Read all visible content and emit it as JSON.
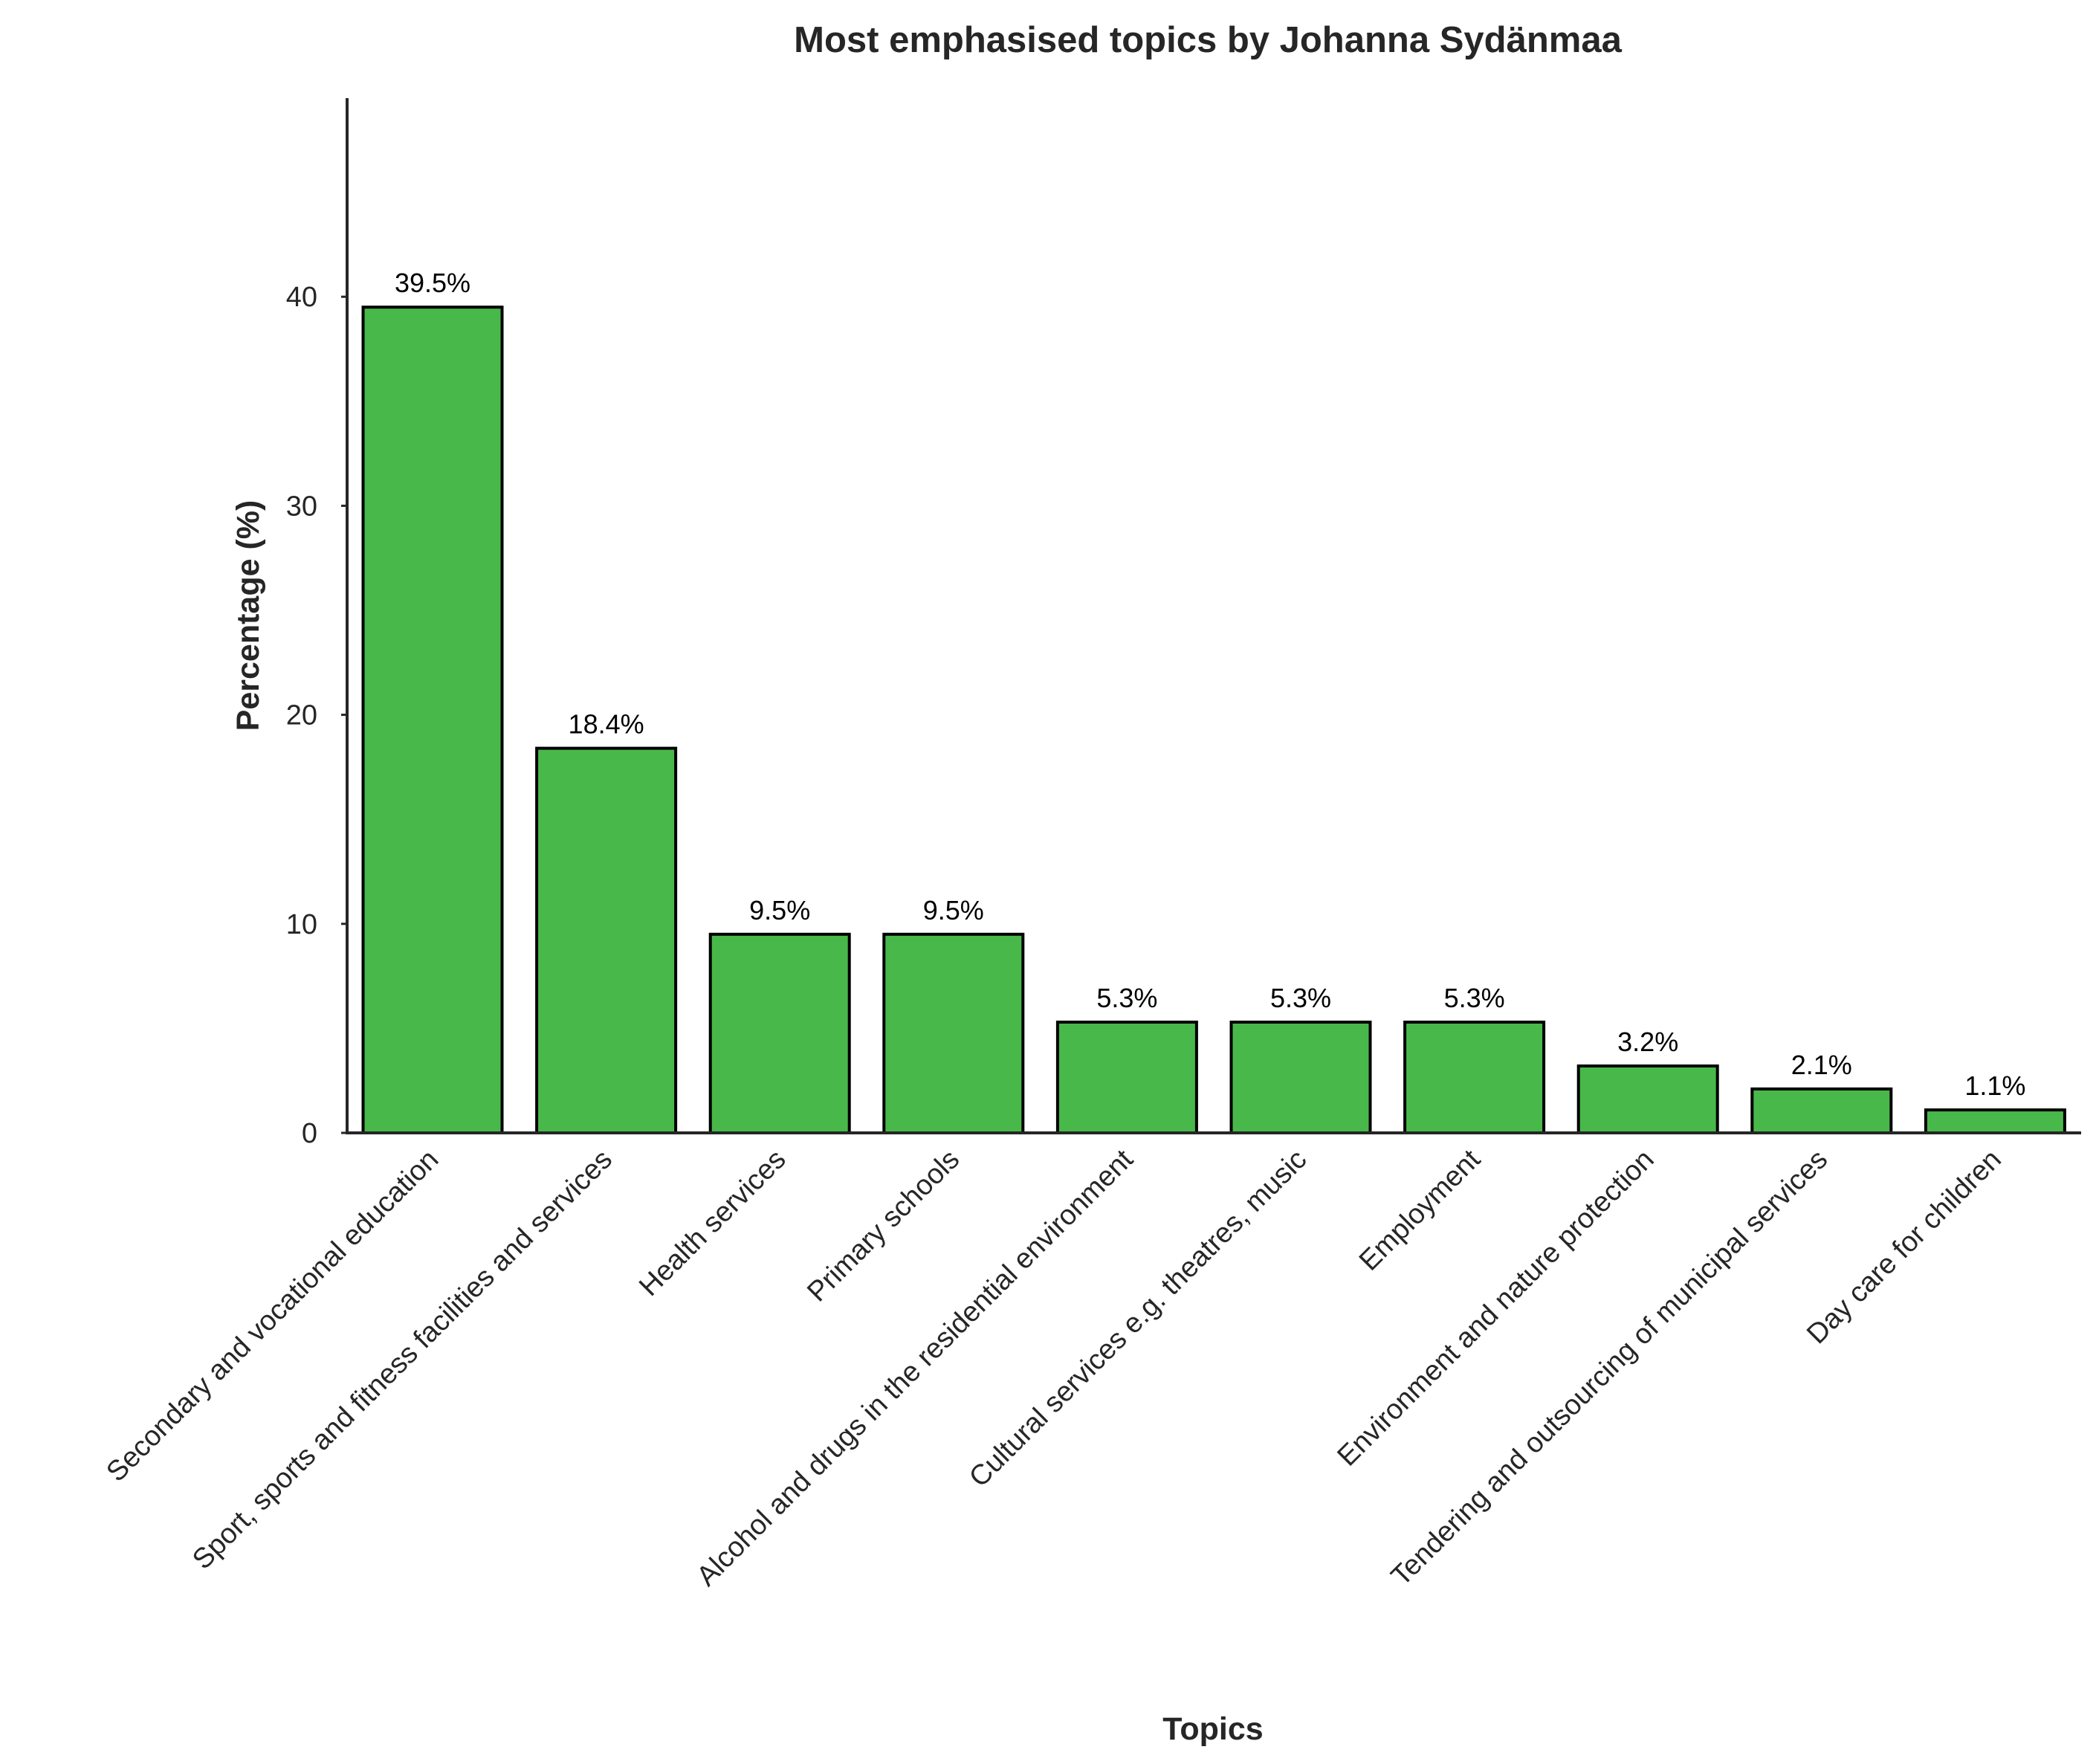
{
  "chart_data": {
    "type": "bar",
    "title": "Most emphasised topics by Johanna Sydänmaa",
    "xlabel": "Topics",
    "ylabel": "Percentage (%)",
    "categories": [
      "Secondary and vocational education",
      "Sport, sports and fitness facilities and services",
      "Health services",
      "Primary schools",
      "Alcohol and drugs in the residential environment",
      "Cultural services e.g. theatres, music",
      "Employment",
      "Environment and nature protection",
      "Tendering and outsourcing of municipal services",
      "Day care for children"
    ],
    "values": [
      39.5,
      18.4,
      9.5,
      9.5,
      5.3,
      5.3,
      5.3,
      3.2,
      2.1,
      1.1
    ],
    "value_labels": [
      "39.5%",
      "18.4%",
      "9.5%",
      "9.5%",
      "5.3%",
      "5.3%",
      "5.3%",
      "3.2%",
      "2.1%",
      "1.1%"
    ],
    "ylim": [
      0,
      49.5
    ],
    "yticks": [
      0,
      10,
      20,
      30,
      40
    ],
    "grid": false,
    "bar_color": "#48b84a",
    "bar_edge_color": "#000000"
  }
}
